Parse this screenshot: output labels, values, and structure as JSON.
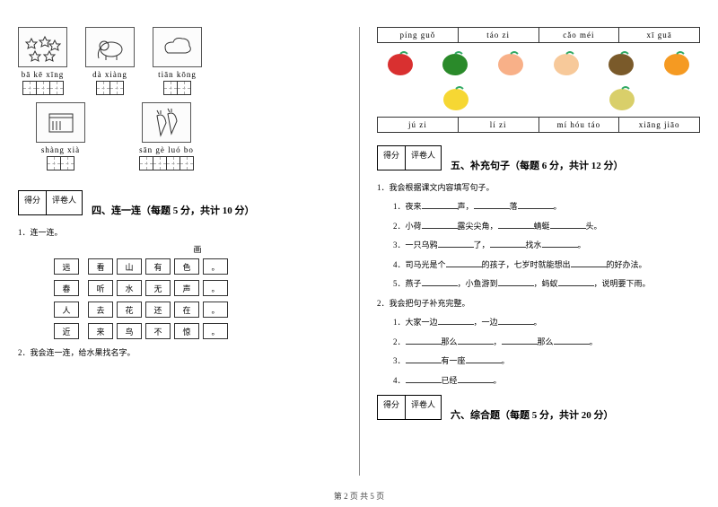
{
  "footer": "第 2 页 共 5 页",
  "left": {
    "items": [
      {
        "pinyin": "bā kē xīng",
        "cells": 3,
        "icon": "stars"
      },
      {
        "pinyin": "dà xiàng",
        "cells": 2,
        "icon": "elephant"
      },
      {
        "pinyin": "tiān  kōng",
        "cells": 2,
        "icon": "cloud"
      },
      {
        "pinyin": "shàng xià",
        "cells": 2,
        "icon": "book"
      },
      {
        "pinyin": "sān gè luó bo",
        "cells": 4,
        "icon": "carrot"
      }
    ],
    "score_labels": [
      "得分",
      "评卷人"
    ],
    "section4": "四、连一连（每题 5 分，共计 10 分）",
    "q1": "1．连一连。",
    "match_header": "画",
    "match_left": [
      "远",
      "春",
      "人",
      "近"
    ],
    "match_rows": [
      [
        "看",
        "山",
        "有",
        "色",
        "。"
      ],
      [
        "听",
        "水",
        "无",
        "声",
        "。"
      ],
      [
        "去",
        "花",
        "还",
        "在",
        "。"
      ],
      [
        "来",
        "鸟",
        "不",
        "惊",
        "。"
      ]
    ],
    "q2": "2．我会连一连，给水果找名字。"
  },
  "right": {
    "pinyin_row1": [
      "píng guǒ",
      "táo zi",
      "cǎo méi",
      "xī guā"
    ],
    "pinyin_row2": [
      "jú zi",
      "lí zi",
      "mí hóu táo",
      "xiāng jiāo"
    ],
    "fruits": [
      {
        "name": "strawberry",
        "color": "#d93030"
      },
      {
        "name": "watermelon",
        "color": "#2a8a2a"
      },
      {
        "name": "peach-pink",
        "color": "#f8b088"
      },
      {
        "name": "peach",
        "color": "#f7c99a"
      },
      {
        "name": "kiwi",
        "color": "#7a5a2a"
      },
      {
        "name": "orange",
        "color": "#f59a22"
      },
      {
        "name": "banana",
        "color": "#f6d733"
      },
      {
        "name": "pear",
        "color": "#d9cf6a"
      }
    ],
    "score_labels": [
      "得分",
      "评卷人"
    ],
    "section5": "五、补充句子（每题 6 分，共计 12 分）",
    "q5_1": "1．我会根据课文内容填写句子。",
    "lines5": [
      {
        "n": "1",
        "parts": [
          "．夜来",
          "声，",
          "落",
          "。"
        ]
      },
      {
        "n": "2",
        "parts": [
          "．小荷",
          "露尖尖角，",
          "蜻蜓",
          "头。"
        ]
      },
      {
        "n": "3",
        "parts": [
          "．一只乌鸦",
          "了，",
          "找水",
          "。"
        ]
      },
      {
        "n": "4",
        "parts": [
          "．司马光是个",
          "的孩子，七岁时就能想出",
          "的好办法。"
        ]
      },
      {
        "n": "5",
        "parts": [
          "．燕子",
          "，小鱼游到",
          "，蚂蚁",
          "，说明要下雨。"
        ]
      }
    ],
    "q5_2": "2．我会把句子补充完整。",
    "lines5b": [
      {
        "n": "1",
        "parts": [
          "．大家一边",
          "，一边",
          "。"
        ]
      },
      {
        "n": "2",
        "parts": [
          "．",
          "那么",
          "，",
          "那么",
          "。"
        ]
      },
      {
        "n": "3",
        "parts": [
          "．",
          "有一座",
          "。"
        ]
      },
      {
        "n": "4",
        "parts": [
          "．",
          "已经",
          "。"
        ]
      }
    ],
    "section6": "六、综合题（每题 5 分，共计 20 分）"
  }
}
